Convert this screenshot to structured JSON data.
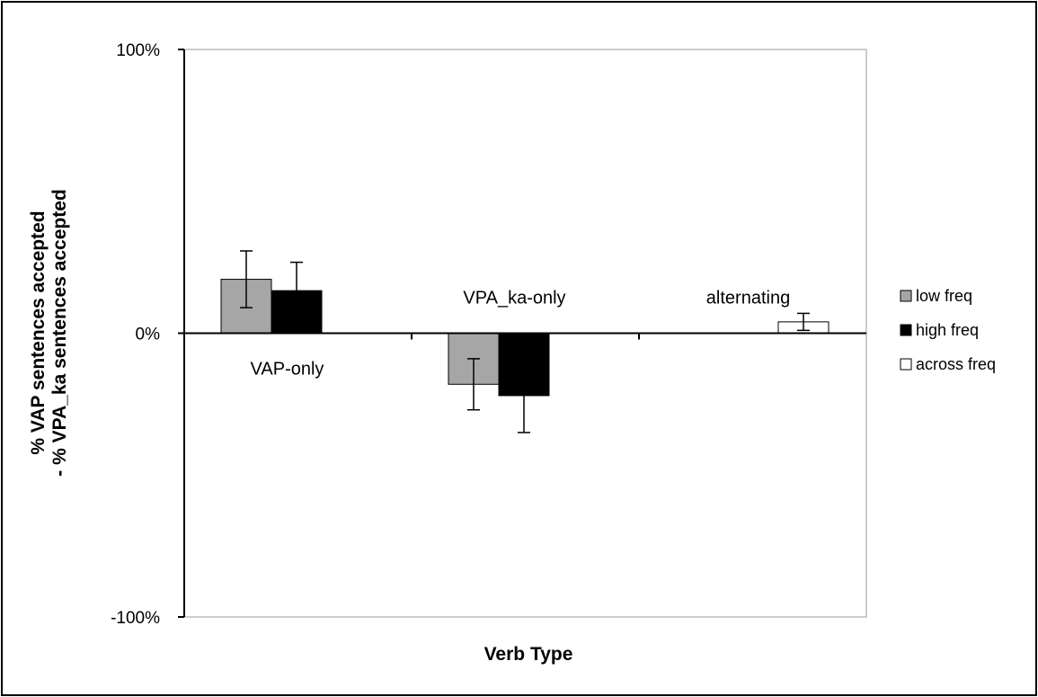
{
  "chart_data": {
    "type": "bar",
    "title": "",
    "xlabel": "Verb Type",
    "ylabel": [
      "% VAP sentences  accepted",
      "- % VPA_ka sentences  accepted"
    ],
    "ylim": [
      -100,
      100
    ],
    "yticks": [
      100,
      0,
      -100
    ],
    "ytick_labels": [
      "100%",
      "0%",
      "-100%"
    ],
    "grid": false,
    "legend_position": "right",
    "categories": [
      "VAP-only",
      "VPA_ka-only",
      "alternating"
    ],
    "series": [
      {
        "name": "low freq",
        "color": "#a6a6a6",
        "values": [
          19,
          -18,
          null
        ],
        "error": [
          10,
          9,
          null
        ]
      },
      {
        "name": "high freq",
        "color": "#000000",
        "values": [
          15,
          -22,
          null
        ],
        "error": [
          10,
          13,
          null
        ]
      },
      {
        "name": "across freq",
        "color": "#ffffff",
        "values": [
          null,
          null,
          4
        ],
        "error": [
          null,
          null,
          3
        ]
      }
    ]
  }
}
